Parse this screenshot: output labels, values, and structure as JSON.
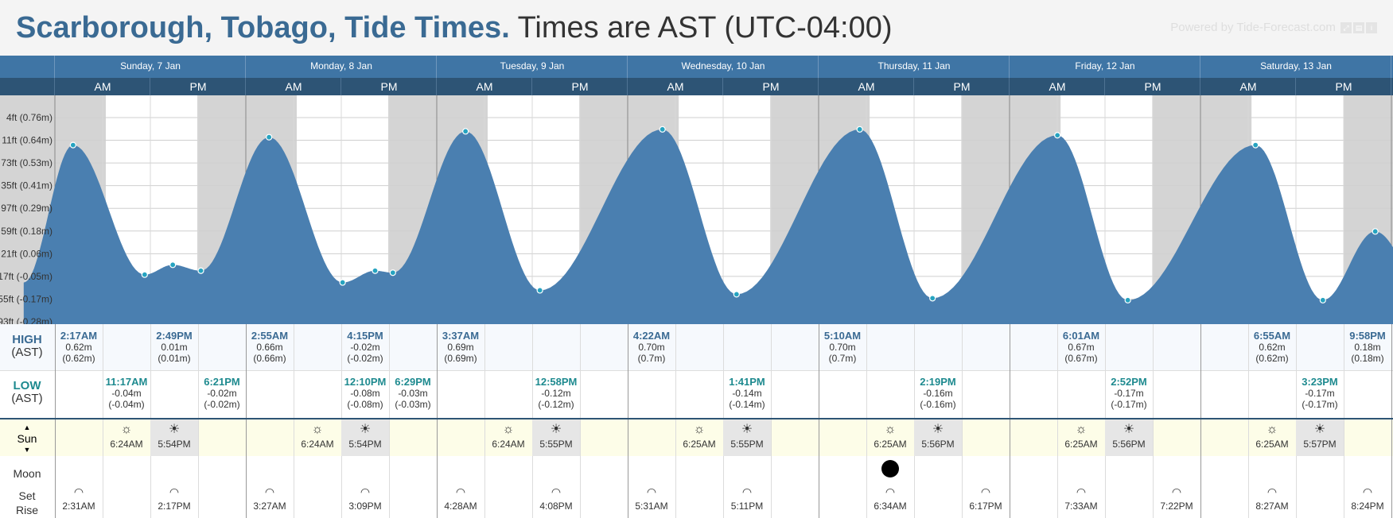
{
  "title": {
    "location": "Scarborough, Tobago, Tide Times.",
    "timezone": "Times are AST (UTC-04:00)"
  },
  "powered_by": "Powered by Tide-Forecast.com",
  "ampm_labels": {
    "am": "AM",
    "pm": "PM"
  },
  "days": [
    {
      "label": "Sunday, 7 Jan"
    },
    {
      "label": "Monday, 8 Jan"
    },
    {
      "label": "Tuesday, 9 Jan"
    },
    {
      "label": "Wednesday, 10 Jan"
    },
    {
      "label": "Thursday, 11 Jan"
    },
    {
      "label": "Friday, 12 Jan"
    },
    {
      "label": "Saturday, 13 Jan"
    }
  ],
  "axis_labels": [
    "...4ft (0.76m)",
    "...11ft (0.64m)",
    "...73ft (0.53m)",
    "...35ft (0.41m)",
    "...97ft (0.29m)",
    "...59ft (0.18m)",
    "...21ft (0.06m)",
    "...17ft (-0.05m)",
    "...55ft (-0.17m)",
    "...93ft (-0.28m)"
  ],
  "chart_data": {
    "type": "area",
    "x_unit": "hours since Sunday 7 Jan 00:00 AST",
    "y_unit": "m",
    "ylim": [
      -0.28,
      0.76
    ],
    "night_shading": true,
    "extremes": [
      {
        "day": "Sunday, 7 Jan",
        "time": "2:17AM",
        "h": 0.62,
        "type": "high"
      },
      {
        "day": "Sunday, 7 Jan",
        "time": "11:17AM",
        "h": -0.04,
        "type": "low"
      },
      {
        "day": "Sunday, 7 Jan",
        "time": "2:49PM",
        "h": 0.01,
        "type": "high"
      },
      {
        "day": "Sunday, 7 Jan",
        "time": "6:21PM",
        "h": -0.02,
        "type": "low"
      },
      {
        "day": "Monday, 8 Jan",
        "time": "2:55AM",
        "h": 0.66,
        "type": "high"
      },
      {
        "day": "Monday, 8 Jan",
        "time": "12:10PM",
        "h": -0.08,
        "type": "low"
      },
      {
        "day": "Monday, 8 Jan",
        "time": "4:15PM",
        "h": -0.02,
        "type": "high"
      },
      {
        "day": "Monday, 8 Jan",
        "time": "6:29PM",
        "h": -0.03,
        "type": "low"
      },
      {
        "day": "Tuesday, 9 Jan",
        "time": "3:37AM",
        "h": 0.69,
        "type": "high"
      },
      {
        "day": "Tuesday, 9 Jan",
        "time": "12:58PM",
        "h": -0.12,
        "type": "low"
      },
      {
        "day": "Wednesday, 10 Jan",
        "time": "4:22AM",
        "h": 0.7,
        "type": "high"
      },
      {
        "day": "Wednesday, 10 Jan",
        "time": "1:41PM",
        "h": -0.14,
        "type": "low"
      },
      {
        "day": "Thursday, 11 Jan",
        "time": "5:10AM",
        "h": 0.7,
        "type": "high"
      },
      {
        "day": "Thursday, 11 Jan",
        "time": "2:19PM",
        "h": -0.16,
        "type": "low"
      },
      {
        "day": "Friday, 12 Jan",
        "time": "6:01AM",
        "h": 0.67,
        "type": "high"
      },
      {
        "day": "Friday, 12 Jan",
        "time": "2:52PM",
        "h": -0.17,
        "type": "low"
      },
      {
        "day": "Saturday, 13 Jan",
        "time": "6:55AM",
        "h": 0.62,
        "type": "high"
      },
      {
        "day": "Saturday, 13 Jan",
        "time": "3:23PM",
        "h": -0.17,
        "type": "low"
      },
      {
        "day": "Saturday, 13 Jan",
        "time": "9:58PM",
        "h": 0.18,
        "type": "high"
      }
    ]
  },
  "table": {
    "high_label": "HIGH",
    "low_label": "LOW",
    "ast_label": "(AST)",
    "highs": [
      {
        "time": "2:17AM",
        "h1": "0.62m",
        "h2": "(0.62m)"
      },
      {
        "time": "2:49PM",
        "h1": "0.01m",
        "h2": "(0.01m)"
      },
      {
        "time": "2:55AM",
        "h1": "0.66m",
        "h2": "(0.66m)"
      },
      {
        "time": "4:15PM",
        "h1": "-0.02m",
        "h2": "(-0.02m)"
      },
      {
        "time": "3:37AM",
        "h1": "0.69m",
        "h2": "(0.69m)"
      },
      {
        "time": "4:22AM",
        "h1": "0.70m",
        "h2": "(0.7m)"
      },
      {
        "time": "5:10AM",
        "h1": "0.70m",
        "h2": "(0.7m)"
      },
      {
        "time": "6:01AM",
        "h1": "0.67m",
        "h2": "(0.67m)"
      },
      {
        "time": "6:55AM",
        "h1": "0.62m",
        "h2": "(0.62m)"
      },
      {
        "time": "9:58PM",
        "h1": "0.18m",
        "h2": "(0.18m)"
      }
    ],
    "lows": [
      {
        "time": "11:17AM",
        "h1": "-0.04m",
        "h2": "(-0.04m)"
      },
      {
        "time": "6:21PM",
        "h1": "-0.02m",
        "h2": "(-0.02m)"
      },
      {
        "time": "12:10PM",
        "h1": "-0.08m",
        "h2": "(-0.08m)"
      },
      {
        "time": "6:29PM",
        "h1": "-0.03m",
        "h2": "(-0.03m)"
      },
      {
        "time": "12:58PM",
        "h1": "-0.12m",
        "h2": "(-0.12m)"
      },
      {
        "time": "1:41PM",
        "h1": "-0.14m",
        "h2": "(-0.14m)"
      },
      {
        "time": "2:19PM",
        "h1": "-0.16m",
        "h2": "(-0.16m)"
      },
      {
        "time": "2:52PM",
        "h1": "-0.17m",
        "h2": "(-0.17m)"
      },
      {
        "time": "3:23PM",
        "h1": "-0.17m",
        "h2": "(-0.17m)"
      }
    ]
  },
  "sun": {
    "label": "Sun",
    "entries": [
      {
        "day": "Sunday, 7 Jan",
        "rise": "6:24AM",
        "set": "5:54PM"
      },
      {
        "day": "Monday, 8 Jan",
        "rise": "6:24AM",
        "set": "5:54PM"
      },
      {
        "day": "Tuesday, 9 Jan",
        "rise": "6:24AM",
        "set": "5:55PM"
      },
      {
        "day": "Wednesday, 10 Jan",
        "rise": "6:25AM",
        "set": "5:55PM"
      },
      {
        "day": "Thursday, 11 Jan",
        "rise": "6:25AM",
        "set": "5:56PM"
      },
      {
        "day": "Friday, 12 Jan",
        "rise": "6:25AM",
        "set": "5:56PM"
      },
      {
        "day": "Saturday, 13 Jan",
        "rise": "6:25AM",
        "set": "5:57PM"
      }
    ]
  },
  "moon": {
    "label": "Moon",
    "set_label": "Set",
    "rise_label": "Rise",
    "phase_icon": "new-moon-icon",
    "events": [
      {
        "time": "2:31AM",
        "type": "set"
      },
      {
        "time": "2:17PM",
        "type": "rise"
      },
      {
        "time": "3:27AM",
        "type": "set"
      },
      {
        "time": "3:09PM",
        "type": "rise"
      },
      {
        "time": "4:28AM",
        "type": "set"
      },
      {
        "time": "4:08PM",
        "type": "rise"
      },
      {
        "time": "5:31AM",
        "type": "set"
      },
      {
        "time": "5:11PM",
        "type": "rise"
      },
      {
        "time": "6:34AM",
        "type": "set"
      },
      {
        "time": "6:17PM",
        "type": "rise"
      },
      {
        "time": "7:33AM",
        "type": "set"
      },
      {
        "time": "7:22PM",
        "type": "rise"
      },
      {
        "time": "8:27AM",
        "type": "set"
      },
      {
        "time": "8:24PM",
        "type": "rise"
      }
    ]
  },
  "colors": {
    "water": "#4a7fb0",
    "night": "#d4d4d4",
    "day": "#ffffff",
    "header_blue": "#3f75a5",
    "dark_blue": "#2d5475",
    "high_text": "#3a6a93",
    "low_text": "#1e8a8f",
    "marker": "#26a3c0"
  }
}
